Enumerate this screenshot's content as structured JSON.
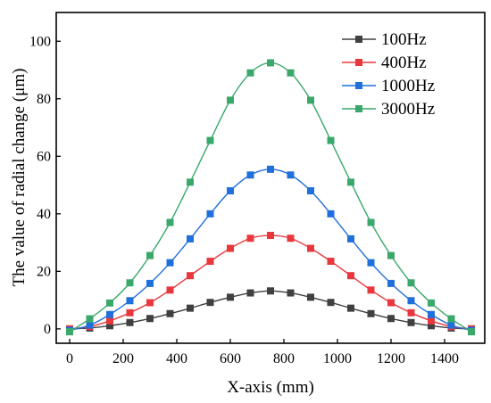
{
  "chart_data": {
    "type": "line",
    "xlabel": "X-axis (mm)",
    "ylabel": "The value of radial change (μm)",
    "xlim": [
      -50,
      1550
    ],
    "ylim": [
      -5,
      110
    ],
    "xticks": [
      0,
      200,
      400,
      600,
      800,
      1000,
      1200,
      1400
    ],
    "yticks": [
      0,
      20,
      40,
      60,
      80,
      100
    ],
    "grid": false,
    "legend_position": "top-right",
    "x": [
      0,
      75,
      150,
      225,
      300,
      375,
      450,
      525,
      600,
      675,
      750,
      825,
      900,
      975,
      1050,
      1125,
      1200,
      1275,
      1350,
      1425,
      1500
    ],
    "series": [
      {
        "name": "100Hz",
        "color": "#404040",
        "values": [
          0,
          0.3,
          1.1,
          2.2,
          3.6,
          5.3,
          7.2,
          9.2,
          11.0,
          12.5,
          13.2,
          12.5,
          11.0,
          9.2,
          7.2,
          5.3,
          3.6,
          2.2,
          1.1,
          0.3,
          0
        ]
      },
      {
        "name": "400Hz",
        "color": "#e8383d",
        "values": [
          0,
          0.8,
          2.8,
          5.6,
          9.1,
          13.5,
          18.5,
          23.5,
          28.0,
          31.5,
          32.5,
          31.5,
          28.0,
          23.5,
          18.5,
          13.5,
          9.1,
          5.6,
          2.8,
          0.8,
          0
        ]
      },
      {
        "name": "1000Hz",
        "color": "#1f6fdc",
        "values": [
          -0.5,
          1.3,
          5.0,
          9.8,
          15.8,
          23.0,
          31.3,
          40.0,
          48.0,
          53.5,
          55.5,
          53.5,
          48.0,
          40.0,
          31.3,
          23.0,
          15.8,
          9.8,
          5.0,
          1.3,
          -0.5
        ]
      },
      {
        "name": "3000Hz",
        "color": "#3aa86a",
        "values": [
          -1,
          3.5,
          9.0,
          16.0,
          25.5,
          37.0,
          51.0,
          65.5,
          79.5,
          89.0,
          92.5,
          89.0,
          79.5,
          65.5,
          51.0,
          37.0,
          25.5,
          16.0,
          9.0,
          3.5,
          -1
        ]
      }
    ]
  }
}
